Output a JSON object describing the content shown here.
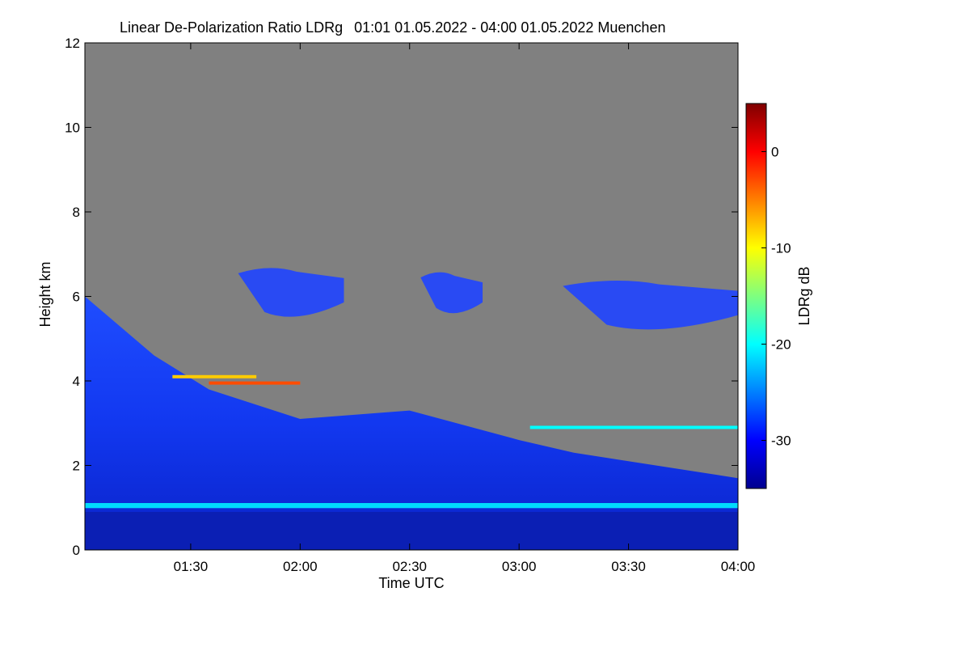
{
  "chart_data": {
    "type": "heatmap",
    "title": "Linear De-Polarization Ratio LDRg",
    "title_period": "01:01 01.05.2022 - 04:00 01.05.2022",
    "title_location": "Muenchen",
    "xlabel": "Time UTC",
    "ylabel": "Height km",
    "xlim": [
      "01:01",
      "04:00"
    ],
    "ylim": [
      0,
      12
    ],
    "x_ticks": [
      "01:30",
      "02:00",
      "02:30",
      "03:00",
      "03:30",
      "04:00"
    ],
    "y_ticks": [
      0,
      2,
      4,
      6,
      8,
      10,
      12
    ],
    "no_data_color": "#808080",
    "colorbar": {
      "label": "LDRg dB",
      "range": [
        -35,
        5
      ],
      "ticks": [
        0,
        -10,
        -20,
        -30
      ],
      "colormap": "jet"
    },
    "features": {
      "boundary_layer_top_km": [
        {
          "time": "01:01",
          "height": 6.0
        },
        {
          "time": "01:20",
          "height": 4.6
        },
        {
          "time": "01:35",
          "height": 3.8
        },
        {
          "time": "02:00",
          "height": 3.1
        },
        {
          "time": "02:30",
          "height": 3.3
        },
        {
          "time": "03:00",
          "height": 2.6
        },
        {
          "time": "03:15",
          "height": 2.3
        },
        {
          "time": "04:00",
          "height": 1.7
        }
      ],
      "residual_layer_band": {
        "height_km": 1.05,
        "ldr_db": -21
      },
      "cirrus_patches": [
        {
          "start": "01:43",
          "end": "02:12",
          "low_km": 5.4,
          "high_km": 6.7
        },
        {
          "start": "02:33",
          "end": "02:50",
          "low_km": 5.5,
          "high_km": 6.6
        },
        {
          "start": "03:12",
          "end": "04:00",
          "low_km": 5.1,
          "high_km": 6.4
        }
      ],
      "lofted_lines": [
        {
          "start": "01:25",
          "end": "01:48",
          "height_km": 4.1,
          "ldr_db": -8
        },
        {
          "start": "01:35",
          "end": "02:00",
          "height_km": 3.95,
          "ldr_db": -3
        },
        {
          "start": "03:03",
          "end": "04:00",
          "height_km": 2.9,
          "ldr_db": -20
        }
      ]
    }
  }
}
